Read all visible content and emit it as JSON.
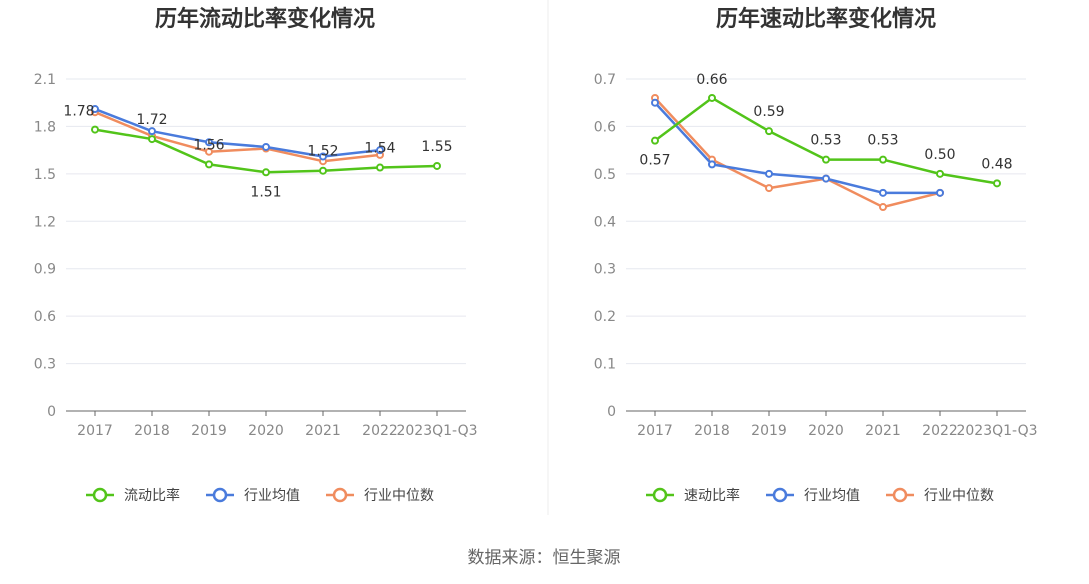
{
  "source": "数据来源：恒生聚源",
  "colors": {
    "company": "#52c41a",
    "avg": "#4a7bdc",
    "median": "#f08c5e"
  },
  "chart_data": [
    {
      "type": "line",
      "title": "历年流动比率变化情况",
      "categories": [
        "2017",
        "2018",
        "2019",
        "2020",
        "2021",
        "2022",
        "2023Q1-Q3"
      ],
      "ylim": [
        0,
        2.1
      ],
      "yticks": [
        "0",
        "0.3",
        "0.6",
        "0.9",
        "1.2",
        "1.5",
        "1.8",
        "2.1"
      ],
      "grid": true,
      "legend_position": "bottom",
      "series": [
        {
          "name": "流动比率",
          "values": [
            1.78,
            1.72,
            1.56,
            1.51,
            1.52,
            1.54,
            1.55
          ],
          "labels": [
            "1.78",
            "1.72",
            "1.56",
            "1.51",
            "1.52",
            "1.54",
            "1.55"
          ]
        },
        {
          "name": "行业均值",
          "values": [
            1.91,
            1.77,
            1.7,
            1.67,
            1.61,
            1.65,
            null
          ]
        },
        {
          "name": "行业中位数",
          "values": [
            1.89,
            1.74,
            1.64,
            1.66,
            1.58,
            1.62,
            null
          ]
        }
      ]
    },
    {
      "type": "line",
      "title": "历年速动比率变化情况",
      "categories": [
        "2017",
        "2018",
        "2019",
        "2020",
        "2021",
        "2022",
        "2023Q1-Q3"
      ],
      "ylim": [
        0,
        0.7
      ],
      "yticks": [
        "0",
        "0.1",
        "0.2",
        "0.3",
        "0.4",
        "0.5",
        "0.6",
        "0.7"
      ],
      "grid": true,
      "legend_position": "bottom",
      "series": [
        {
          "name": "速动比率",
          "values": [
            0.57,
            0.66,
            0.59,
            0.53,
            0.53,
            0.5,
            0.48
          ],
          "labels": [
            "0.57",
            "0.66",
            "0.59",
            "0.53",
            "0.53",
            "0.50",
            "0.48"
          ]
        },
        {
          "name": "行业均值",
          "values": [
            0.65,
            0.52,
            0.5,
            0.49,
            0.46,
            0.46,
            null
          ]
        },
        {
          "name": "行业中位数",
          "values": [
            0.66,
            0.53,
            0.47,
            0.49,
            0.43,
            0.46,
            null
          ]
        }
      ]
    }
  ]
}
